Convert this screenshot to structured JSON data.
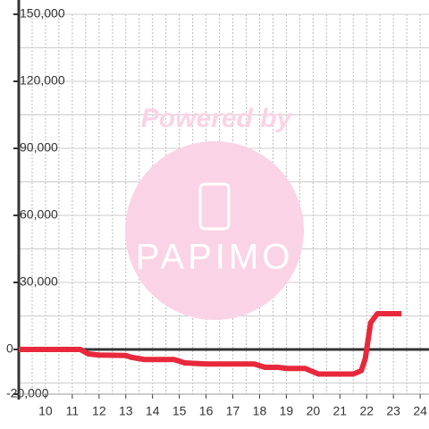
{
  "chart_data": {
    "type": "line",
    "x": [
      9,
      10,
      11,
      11.3,
      11.6,
      12,
      13,
      13.2,
      13.7,
      14.8,
      15.2,
      16,
      17,
      17.8,
      18.2,
      18.7,
      19,
      19.7,
      20,
      20.2,
      21,
      21.5,
      21.8,
      21.95,
      22.15,
      22.4,
      23.3
    ],
    "series": [
      {
        "color": "#e8283c",
        "values": [
          0,
          0,
          0,
          0,
          -2000,
          -2500,
          -2700,
          -3500,
          -4500,
          -4500,
          -6000,
          -6500,
          -6500,
          -6500,
          -8000,
          -8000,
          -8500,
          -8500,
          -10000,
          -11000,
          -11000,
          -11000,
          -9500,
          -4000,
          12000,
          16000,
          16000
        ]
      }
    ],
    "xlim": [
      9,
      24.33
    ],
    "xticks": [
      10,
      11,
      12,
      13,
      14,
      15,
      16,
      17,
      18,
      19,
      20,
      21,
      22,
      23,
      24
    ],
    "xgrid": [
      9.5,
      10,
      10.5,
      11,
      11.5,
      12,
      12.5,
      13,
      13.5,
      14,
      14.5,
      15,
      15.5,
      16,
      16.5,
      17,
      17.5,
      18,
      18.5,
      19,
      19.5,
      20,
      20.5,
      21,
      21.5,
      22,
      22.5,
      23,
      23.5,
      24
    ],
    "ylim": [
      -20000,
      150000
    ],
    "yticks": [
      {
        "value": -20000,
        "label": "-20,000"
      },
      0,
      {
        "value": 30000,
        "label": "30,000"
      },
      {
        "value": 60000,
        "label": "60,000"
      },
      {
        "value": 90000,
        "label": "90,000"
      },
      {
        "value": 120000,
        "label": "120,000"
      },
      {
        "value": 150000,
        "label": "150,000"
      }
    ],
    "ygrid": [
      -15000,
      15000,
      45000,
      75000,
      105000,
      135000
    ],
    "grid": true
  },
  "watermark": {
    "caption": "Powered by",
    "logo": "PAPIMO"
  }
}
